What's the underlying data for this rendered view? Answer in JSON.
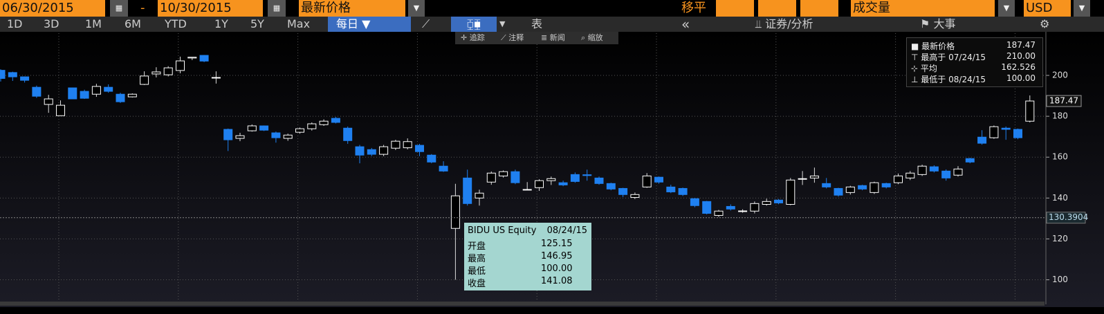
{
  "toolbar": {
    "start_date": "06/30/2015",
    "dash": "-",
    "end_date": "10/30/2015",
    "field": "最新价格",
    "moving_avg": "移平",
    "volume": "成交量",
    "currency": "USD"
  },
  "periods": [
    "1D",
    "3D",
    "1M",
    "6M",
    "YTD",
    "1Y",
    "5Y",
    "Max"
  ],
  "frequency": "每日",
  "table_button": "表",
  "securities": "证券/分析",
  "events": "大事",
  "tools": [
    "追踪",
    "注释",
    "新闻",
    "缩放"
  ],
  "legend": {
    "last": {
      "label": "最新价格",
      "value": "187.47"
    },
    "high": {
      "label": "最高于",
      "date": "07/24/15",
      "value": "210.00"
    },
    "avg": {
      "label": "平均",
      "value": "162.526"
    },
    "low": {
      "label": "最低于",
      "date": "08/24/15",
      "value": "100.00"
    }
  },
  "tooltip": {
    "security": "BIDU US Equity",
    "date": "08/24/15",
    "rows": [
      [
        "开盘",
        "125.15"
      ],
      [
        "最高",
        "146.95"
      ],
      [
        "最低",
        "100.00"
      ],
      [
        "收盘",
        "141.08"
      ]
    ]
  },
  "chart_data": {
    "type": "candlestick",
    "open": [
      202.5,
      201.4,
      199.3,
      194.2,
      185.8,
      180.3,
      193.9,
      192.2,
      190.8,
      194.2,
      190.8,
      189.5,
      195.6,
      200.7,
      200.3,
      202.4,
      208.5,
      209.8,
      199,
      173.6,
      169.2,
      172.9,
      175.3,
      171.9,
      169.2,
      172.2,
      173.9,
      175.9,
      179,
      174.2,
      165.1,
      163.7,
      161.4,
      164.4,
      164.6,
      165.8,
      161,
      155.6,
      125.15,
      149.8,
      140,
      147.8,
      150.8,
      152.9,
      144,
      145.1,
      148.5,
      147.5,
      151.5,
      151.4,
      149.8,
      147.1,
      144.7,
      140.3,
      145.4,
      150.2,
      145.4,
      144.7,
      139.7,
      138.3,
      131.5,
      135.9,
      133.4,
      133.6,
      136.9,
      139,
      136.9,
      149.2,
      149.8,
      147.1,
      144.7,
      142.7,
      146.1,
      142.7,
      147.1,
      147.5,
      149.8,
      151.5,
      155.3,
      153.2,
      151.2,
      159.3,
      169.8,
      169.5,
      174.2,
      173.6,
      177.6
    ],
    "high": [
      203,
      201.8,
      199.5,
      195,
      190.5,
      187.8,
      194,
      193,
      195.9,
      195.6,
      191.5,
      191.2,
      202,
      204,
      204.5,
      209.2,
      209,
      210,
      202,
      174,
      171.9,
      176,
      175.5,
      172.5,
      171.5,
      174.5,
      177,
      178.5,
      179.7,
      175,
      166,
      164.5,
      166,
      168.5,
      169.2,
      166.5,
      161.5,
      158,
      146.95,
      153.9,
      144.1,
      153,
      153.5,
      153.9,
      147.8,
      149.2,
      150.5,
      148.5,
      152.5,
      153.9,
      150.5,
      147.5,
      145,
      142.7,
      152.2,
      150.5,
      146.5,
      145.1,
      140,
      138.6,
      134.2,
      136.9,
      134.5,
      138.3,
      139.7,
      139.5,
      149.8,
      153.2,
      154.9,
      149.8,
      145,
      146,
      146.5,
      148,
      147.5,
      152,
      153.2,
      156.3,
      156,
      154,
      155.6,
      159.7,
      173.2,
      175.5,
      175,
      174,
      190.2
    ],
    "low": [
      197,
      197.3,
      196.5,
      189,
      181.7,
      180.3,
      188.5,
      188.5,
      189.5,
      191.5,
      186.5,
      189.2,
      195.3,
      199,
      199.5,
      201,
      207.5,
      206.5,
      196,
      163,
      167.8,
      172.5,
      172.8,
      167.1,
      168,
      171.5,
      173,
      175.3,
      176.5,
      166.5,
      157,
      160.5,
      160.5,
      163.5,
      163.8,
      160.5,
      157,
      152.8,
      100,
      136.3,
      136.3,
      146.5,
      150,
      146.8,
      143.8,
      143.5,
      146.4,
      145.8,
      147.5,
      148.5,
      146.5,
      143.8,
      140.5,
      139.5,
      145,
      147,
      142.4,
      141,
      135.5,
      132,
      130.8,
      133.9,
      132.8,
      132.5,
      136.3,
      137,
      136.5,
      146.4,
      147.5,
      144.7,
      140.7,
      141.7,
      143.8,
      142,
      144.7,
      146.8,
      148.8,
      150.8,
      152.5,
      148.5,
      150.5,
      157,
      166.1,
      169,
      168.5,
      168.8,
      177
    ],
    "close": [
      198.5,
      199.3,
      197.6,
      189.8,
      188.5,
      185.4,
      188.5,
      188.8,
      194.6,
      192.2,
      187.1,
      190.8,
      199.7,
      201.7,
      203.7,
      207.1,
      208.9,
      207,
      199,
      168.5,
      170.5,
      175.3,
      173.2,
      169.5,
      170.8,
      173.9,
      176.3,
      177.6,
      177,
      168.1,
      161,
      161.4,
      165.1,
      167.8,
      167.6,
      162.7,
      157.6,
      153.2,
      141.08,
      137.3,
      142.4,
      152.2,
      152.9,
      147.5,
      144.2,
      148.5,
      149.5,
      146.4,
      148.1,
      151,
      147.1,
      144.4,
      141.7,
      141.7,
      150.8,
      147.8,
      143,
      141.7,
      136.3,
      132.5,
      133.6,
      134.6,
      133.7,
      137.3,
      138.3,
      137.6,
      148.8,
      149.5,
      150.8,
      145.4,
      141.4,
      145.4,
      144.4,
      147.5,
      145.4,
      150.8,
      152.2,
      155.6,
      153.2,
      149.8,
      154.2,
      157.6,
      166.8,
      174.9,
      173.6,
      169.5,
      187.47
    ],
    "up_color": "#ffffff",
    "down_color": "#1f80f0",
    "ylim": [
      88,
      222
    ],
    "yticks": [
      100,
      120,
      140,
      160,
      180,
      200
    ],
    "grid": true,
    "last_price": {
      "value": 187.47,
      "label": "187.47"
    },
    "crosshair": {
      "value": 130.3904,
      "label": "130.3904"
    }
  }
}
